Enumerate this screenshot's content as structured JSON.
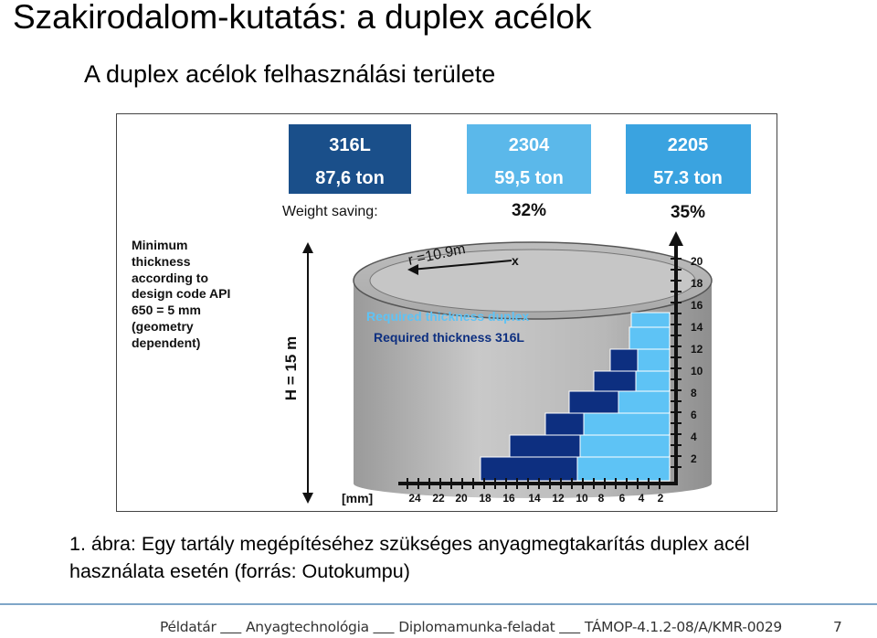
{
  "slide": {
    "title": "Szakirodalom-kutatás: a duplex acélok",
    "subtitle": "A duplex acélok felhasználási területe",
    "caption": "1. ábra: Egy tartály megépítéséhez szükséges anyagmegtakarítás duplex acél használata esetén (forrás: Outokumpu)",
    "footer": {
      "part1": "Példatár",
      "part2": "Anyagtechnológia",
      "part3": "Diplomamunka-feladat",
      "part4": "TÁMOP-4.1.2-08/A/KMR-0029",
      "page": "7"
    }
  },
  "figure": {
    "boxes": [
      {
        "grade": "316L",
        "weight": "87,6 ton",
        "saving": "",
        "color": "#1a4f8a"
      },
      {
        "grade": "2304",
        "weight": "59,5 ton",
        "saving": "32%",
        "color": "#5bb8ea"
      },
      {
        "grade": "2205",
        "weight": "57.3 ton",
        "saving": "35%",
        "color": "#3aa3e0"
      }
    ],
    "weight_saving_label": "Weight saving:",
    "min_thickness_note": [
      "Minimum",
      "thickness",
      "according to",
      "design code API",
      "650 = 5 mm",
      "(geometry",
      "dependent)"
    ],
    "radius_label": "r =10.9m",
    "radius_marker": "x",
    "height_label": "H = 15 m",
    "legend_duplex": "Required thickness duplex",
    "legend_316l": "Required thickness 316L",
    "right_scale": [
      "20",
      "18",
      "16",
      "14",
      "12",
      "10",
      "8",
      "6",
      "4",
      "2"
    ],
    "bottom_scale": [
      "24",
      "22",
      "20",
      "18",
      "16",
      "14",
      "12",
      "10",
      "8",
      "6",
      "4",
      "2"
    ],
    "unit_label": "[mm]",
    "colors": {
      "dark_blue": "#0d2f80",
      "light_blue": "#5ec3f5",
      "tank_gray": "#a8a8a8"
    }
  }
}
